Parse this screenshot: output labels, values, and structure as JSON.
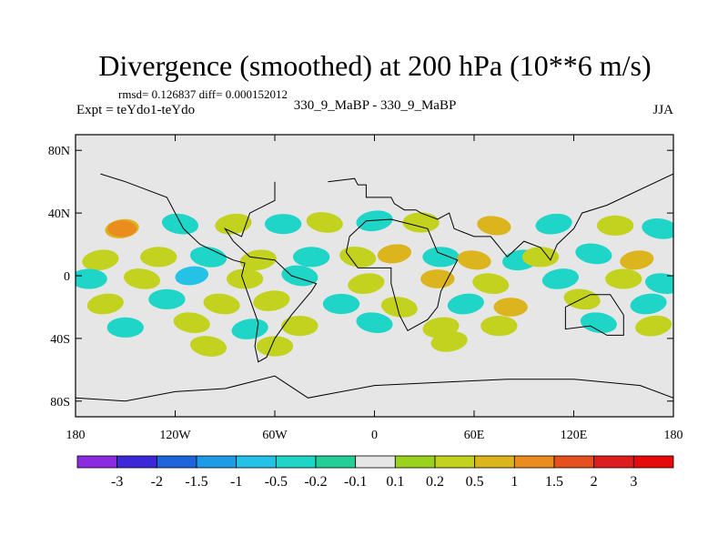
{
  "chart_data": {
    "type": "heatmap",
    "title": "Divergence (smoothed) at 200 hPa (10**6 m/s)",
    "stats": "rmsd= 0.126837  diff= 0.000152012",
    "left_label": "Expt = teYdo1-teYdo",
    "center_label": "330_9_MaBP - 330_9_MaBP",
    "right_label": "JJA",
    "x_ticks": [
      "180",
      "120W",
      "60W",
      "0",
      "60E",
      "120E",
      "180"
    ],
    "x_tick_values": [
      -180,
      -120,
      -60,
      0,
      60,
      120,
      180
    ],
    "y_ticks": [
      "80N",
      "40N",
      "0",
      "40S",
      "80S"
    ],
    "y_tick_values": [
      80,
      40,
      0,
      -40,
      -80
    ],
    "xlim": [
      -180,
      180
    ],
    "ylim": [
      -90,
      90
    ],
    "colorbar": {
      "labels": [
        "-3",
        "-2",
        "-1.5",
        "-1",
        "-0.5",
        "-0.2",
        "-0.1",
        "0.1",
        "0.2",
        "0.5",
        "1",
        "1.5",
        "2",
        "3"
      ],
      "colors": [
        "#8a2be2",
        "#3c28d8",
        "#1e64dc",
        "#1e9be6",
        "#23c2e6",
        "#1ed5c8",
        "#23cf96",
        "#e6e6e6",
        "#9bd21e",
        "#c3d21e",
        "#dcb41e",
        "#eb8c1e",
        "#e6501e",
        "#dc1e1e",
        "#e60a0a"
      ]
    },
    "field_blobs": [
      {
        "lon": -152,
        "lat": 30,
        "value": 0.55
      },
      {
        "lon": -152,
        "lat": 30,
        "value": 1.0
      },
      {
        "lon": -117,
        "lat": 33,
        "value": -0.3
      },
      {
        "lon": -85,
        "lat": 33,
        "value": 0.3
      },
      {
        "lon": -55,
        "lat": 33,
        "value": -0.3
      },
      {
        "lon": -30,
        "lat": 34,
        "value": 0.3
      },
      {
        "lon": 0,
        "lat": 35,
        "value": -0.3
      },
      {
        "lon": 28,
        "lat": 34,
        "value": 0.3
      },
      {
        "lon": 72,
        "lat": 32,
        "value": 0.55
      },
      {
        "lon": 108,
        "lat": 33,
        "value": -0.3
      },
      {
        "lon": 145,
        "lat": 32,
        "value": 0.3
      },
      {
        "lon": 172,
        "lat": 30,
        "value": -0.3
      },
      {
        "lon": -165,
        "lat": 10,
        "value": 0.3
      },
      {
        "lon": -130,
        "lat": 12,
        "value": 0.3
      },
      {
        "lon": -100,
        "lat": 12,
        "value": -0.3
      },
      {
        "lon": -70,
        "lat": 10,
        "value": 0.3
      },
      {
        "lon": -38,
        "lat": 12,
        "value": -0.3
      },
      {
        "lon": -10,
        "lat": 12,
        "value": 0.3
      },
      {
        "lon": 12,
        "lat": 14,
        "value": 0.55
      },
      {
        "lon": 40,
        "lat": 12,
        "value": -0.3
      },
      {
        "lon": 60,
        "lat": 10,
        "value": 0.55
      },
      {
        "lon": 88,
        "lat": 10,
        "value": -0.3
      },
      {
        "lon": 100,
        "lat": 12,
        "value": 0.3
      },
      {
        "lon": 132,
        "lat": 14,
        "value": -0.3
      },
      {
        "lon": 158,
        "lat": 10,
        "value": 0.55
      },
      {
        "lon": -172,
        "lat": -2,
        "value": -0.3
      },
      {
        "lon": -140,
        "lat": -2,
        "value": 0.3
      },
      {
        "lon": -110,
        "lat": 0,
        "value": -0.6
      },
      {
        "lon": -78,
        "lat": -2,
        "value": 0.3
      },
      {
        "lon": -45,
        "lat": 0,
        "value": -0.3
      },
      {
        "lon": -5,
        "lat": -5,
        "value": 0.3
      },
      {
        "lon": 38,
        "lat": -2,
        "value": 0.55
      },
      {
        "lon": 70,
        "lat": -5,
        "value": 0.3
      },
      {
        "lon": 112,
        "lat": -2,
        "value": -0.3
      },
      {
        "lon": 150,
        "lat": -2,
        "value": 0.3
      },
      {
        "lon": 174,
        "lat": -5,
        "value": -0.3
      },
      {
        "lon": -162,
        "lat": -18,
        "value": 0.3
      },
      {
        "lon": -125,
        "lat": -15,
        "value": -0.3
      },
      {
        "lon": -92,
        "lat": -18,
        "value": 0.3
      },
      {
        "lon": -62,
        "lat": -16,
        "value": 0.3
      },
      {
        "lon": -20,
        "lat": -18,
        "value": -0.3
      },
      {
        "lon": 15,
        "lat": -20,
        "value": 0.3
      },
      {
        "lon": 55,
        "lat": -18,
        "value": -0.3
      },
      {
        "lon": 82,
        "lat": -20,
        "value": 0.55
      },
      {
        "lon": 125,
        "lat": -15,
        "value": 0.3
      },
      {
        "lon": 165,
        "lat": -18,
        "value": -0.3
      },
      {
        "lon": -150,
        "lat": -33,
        "value": -0.3
      },
      {
        "lon": -110,
        "lat": -30,
        "value": 0.3
      },
      {
        "lon": -75,
        "lat": -34,
        "value": -0.3
      },
      {
        "lon": -45,
        "lat": -32,
        "value": 0.3
      },
      {
        "lon": 0,
        "lat": -30,
        "value": -0.3
      },
      {
        "lon": 40,
        "lat": -33,
        "value": 0.3
      },
      {
        "lon": 75,
        "lat": -32,
        "value": 0.3
      },
      {
        "lon": 135,
        "lat": -30,
        "value": -0.3
      },
      {
        "lon": 168,
        "lat": -32,
        "value": 0.3
      },
      {
        "lon": -60,
        "lat": -45,
        "value": 0.3
      },
      {
        "lon": -100,
        "lat": -45,
        "value": 0.3
      },
      {
        "lon": 45,
        "lat": -42,
        "value": 0.3
      }
    ],
    "coastlines": [
      [
        [
          -28,
          60
        ],
        [
          -12,
          62
        ],
        [
          -10,
          58
        ],
        [
          -5,
          58
        ],
        [
          -5,
          50
        ],
        [
          10,
          50
        ],
        [
          12,
          46
        ],
        [
          18,
          42
        ],
        [
          25,
          42
        ],
        [
          28,
          40
        ],
        [
          38,
          36
        ],
        [
          45,
          40
        ],
        [
          48,
          30
        ],
        [
          60,
          25
        ],
        [
          70,
          25
        ],
        [
          80,
          12
        ],
        [
          90,
          22
        ],
        [
          100,
          18
        ],
        [
          106,
          10
        ],
        [
          110,
          20
        ],
        [
          120,
          30
        ],
        [
          125,
          40
        ],
        [
          140,
          45
        ],
        [
          180,
          65
        ]
      ],
      [
        [
          -5,
          35
        ],
        [
          10,
          36
        ],
        [
          25,
          32
        ],
        [
          32,
          30
        ],
        [
          38,
          15
        ],
        [
          50,
          10
        ],
        [
          40,
          -10
        ],
        [
          38,
          -20
        ],
        [
          32,
          -28
        ],
        [
          20,
          -35
        ],
        [
          15,
          -25
        ],
        [
          10,
          -5
        ],
        [
          10,
          5
        ],
        [
          0,
          5
        ],
        [
          -10,
          5
        ],
        [
          -17,
          15
        ],
        [
          -15,
          25
        ],
        [
          -5,
          35
        ]
      ],
      [
        [
          -165,
          65
        ],
        [
          -150,
          60
        ],
        [
          -125,
          50
        ],
        [
          -115,
          30
        ],
        [
          -105,
          20
        ],
        [
          -95,
          15
        ],
        [
          -85,
          10
        ],
        [
          -78,
          8
        ],
        [
          -80,
          0
        ],
        [
          -75,
          -15
        ],
        [
          -70,
          -30
        ],
        [
          -72,
          -45
        ],
        [
          -70,
          -55
        ],
        [
          -65,
          -52
        ],
        [
          -60,
          -40
        ],
        [
          -50,
          -25
        ],
        [
          -38,
          -10
        ],
        [
          -35,
          -5
        ],
        [
          -50,
          0
        ],
        [
          -60,
          10
        ],
        [
          -75,
          12
        ],
        [
          -85,
          22
        ],
        [
          -90,
          30
        ],
        [
          -80,
          25
        ],
        [
          -75,
          40
        ],
        [
          -60,
          48
        ],
        [
          -60,
          60
        ]
      ],
      [
        [
          115,
          -20
        ],
        [
          130,
          -12
        ],
        [
          142,
          -12
        ],
        [
          150,
          -25
        ],
        [
          150,
          -38
        ],
        [
          140,
          -38
        ],
        [
          130,
          -32
        ],
        [
          115,
          -34
        ],
        [
          115,
          -20
        ]
      ],
      [
        [
          -180,
          -78
        ],
        [
          -150,
          -80
        ],
        [
          -120,
          -74
        ],
        [
          -90,
          -72
        ],
        [
          -60,
          -64
        ],
        [
          -40,
          -78
        ],
        [
          0,
          -70
        ],
        [
          40,
          -68
        ],
        [
          80,
          -66
        ],
        [
          120,
          -66
        ],
        [
          160,
          -70
        ],
        [
          180,
          -78
        ]
      ]
    ]
  }
}
